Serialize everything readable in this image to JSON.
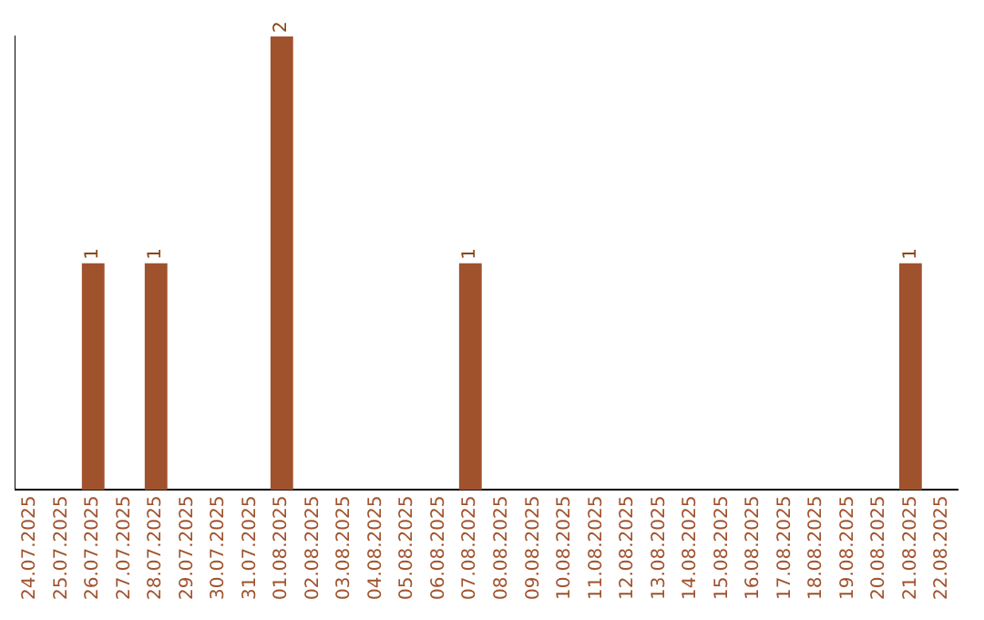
{
  "chart_data": {
    "type": "bar",
    "categories": [
      "24.07.2025",
      "25.07.2025",
      "26.07.2025",
      "27.07.2025",
      "28.07.2025",
      "29.07.2025",
      "30.07.2025",
      "31.07.2025",
      "01.08.2025",
      "02.08.2025",
      "03.08.2025",
      "04.08.2025",
      "05.08.2025",
      "06.08.2025",
      "07.08.2025",
      "08.08.2025",
      "09.08.2025",
      "10.08.2025",
      "11.08.2025",
      "12.08.2025",
      "13.08.2025",
      "14.08.2025",
      "15.08.2025",
      "16.08.2025",
      "17.08.2025",
      "18.08.2025",
      "19.08.2025",
      "20.08.2025",
      "21.08.2025",
      "22.08.2025"
    ],
    "values": [
      0,
      0,
      1,
      0,
      1,
      0,
      0,
      0,
      2,
      0,
      0,
      0,
      0,
      0,
      1,
      0,
      0,
      0,
      0,
      0,
      0,
      0,
      0,
      0,
      0,
      0,
      0,
      0,
      1,
      0
    ],
    "value_labels": [
      null,
      null,
      "1",
      null,
      "1",
      null,
      null,
      null,
      "2",
      null,
      null,
      null,
      null,
      null,
      "1",
      null,
      null,
      null,
      null,
      null,
      null,
      null,
      null,
      null,
      null,
      null,
      null,
      null,
      "1",
      null
    ],
    "color": "#a0522d",
    "grid": false,
    "legend": false,
    "tick_labels": "x"
  }
}
